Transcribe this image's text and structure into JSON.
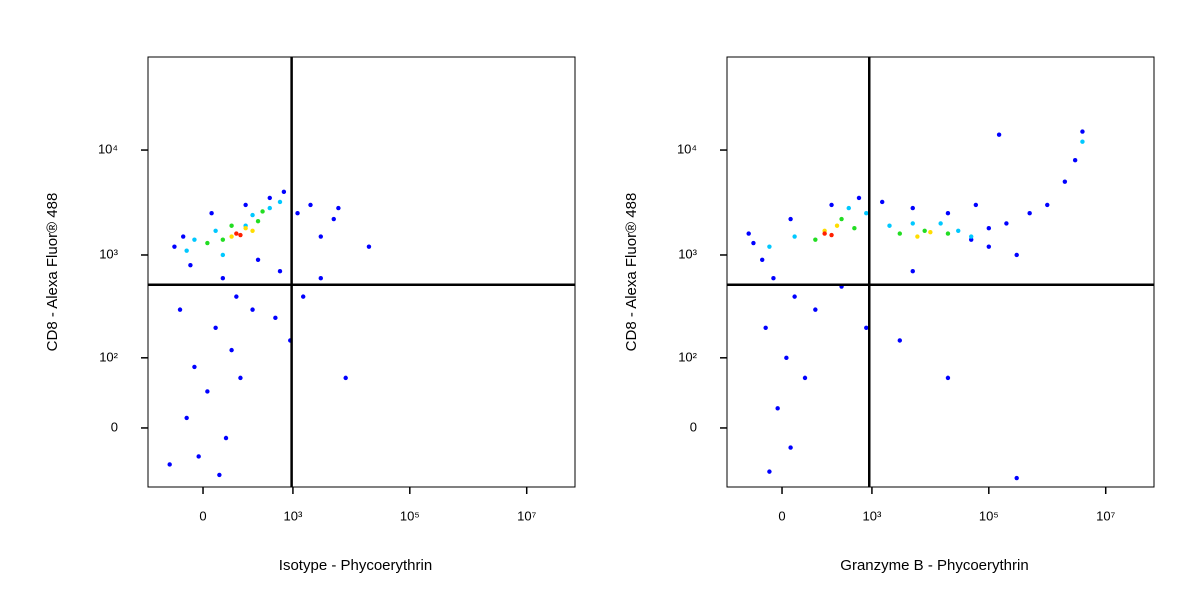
{
  "chart_data": [
    {
      "type": "scatter",
      "xlabel": "Isotype - Phycoerythrin",
      "ylabel": "CD8 - Alexa Fluor® 488",
      "xscale": "biexponential",
      "yscale": "biexponential",
      "xlim": [
        -250,
        67000000
      ],
      "ylim": [
        -76,
        77000
      ],
      "xticks": [
        0,
        {
          "value": 1000,
          "label": "10³"
        },
        {
          "value": 100000,
          "label": "10⁵"
        },
        {
          "value": 10000000,
          "label": "10⁷"
        }
      ],
      "yticks": [
        0,
        {
          "value": 100,
          "label": "10²"
        },
        {
          "value": 1000,
          "label": "10³"
        },
        {
          "value": 10000,
          "label": "10⁴"
        }
      ],
      "gates": {
        "x": 950,
        "y": 520
      },
      "series": [
        {
          "color": "#0000ff",
          "x": [
            -50,
            -80,
            20,
            150,
            400,
            700,
            1200,
            2000,
            3000,
            6000,
            -30,
            50,
            100,
            -60,
            30,
            80,
            -20,
            10,
            -40,
            60,
            -10,
            120,
            200,
            500,
            900,
            1500,
            3000,
            8000,
            -100,
            250,
            600,
            40,
            5000,
            20000
          ],
          "values": [
            1500,
            1200,
            2500,
            3000,
            3500,
            4000,
            2500,
            3000,
            1500,
            2800,
            800,
            600,
            400,
            300,
            200,
            120,
            80,
            40,
            10,
            -10,
            -30,
            60,
            300,
            250,
            150,
            400,
            600,
            60,
            -40,
            900,
            700,
            -55,
            2200,
            1200
          ]
        },
        {
          "color": "#00c8ff",
          "x": [
            -20,
            30,
            200,
            400,
            600,
            -40,
            50,
            150
          ],
          "values": [
            1400,
            1700,
            2400,
            2800,
            3200,
            1100,
            1000,
            1900
          ]
        },
        {
          "color": "#22dd22",
          "x": [
            50,
            80,
            250,
            300,
            10
          ],
          "values": [
            1400,
            1900,
            2100,
            2600,
            1300
          ]
        },
        {
          "color": "#ffdd00",
          "x": [
            80,
            150,
            200
          ],
          "values": [
            1500,
            1800,
            1700
          ]
        },
        {
          "color": "#ff2000",
          "x": [
            100,
            120
          ],
          "values": [
            1600,
            1550
          ]
        }
      ]
    },
    {
      "type": "scatter",
      "xlabel": "Granzyme B - Phycoerythrin",
      "ylabel": "CD8 - Alexa Fluor® 488",
      "xscale": "biexponential",
      "yscale": "biexponential",
      "xlim": [
        -250,
        67000000
      ],
      "ylim": [
        -76,
        77000
      ],
      "xticks": [
        0,
        {
          "value": 1000,
          "label": "10³"
        },
        {
          "value": 100000,
          "label": "10⁵"
        },
        {
          "value": 10000000,
          "label": "10⁷"
        }
      ],
      "yticks": [
        0,
        {
          "value": 100,
          "label": "10²"
        },
        {
          "value": 1000,
          "label": "10³"
        },
        {
          "value": 10000,
          "label": "10⁴"
        }
      ],
      "gates": {
        "x": 900,
        "y": 520
      },
      "series": [
        {
          "color": "#0000ff",
          "x": [
            -80,
            -50,
            20,
            200,
            600,
            1500,
            5000,
            20000,
            50000,
            100000,
            200000,
            500000,
            1000000,
            2000000,
            3000000,
            4000000,
            100000,
            300000,
            -20,
            30,
            -40,
            10,
            60,
            -10,
            20,
            -30,
            100,
            300,
            800,
            3000,
            20000,
            60000,
            150000,
            -100,
            5000,
            300000
          ],
          "values": [
            1300,
            900,
            2200,
            3000,
            3500,
            3200,
            2800,
            2500,
            1400,
            1800,
            2000,
            2500,
            3000,
            5000,
            8000,
            15000,
            1200,
            1000,
            600,
            400,
            200,
            100,
            60,
            20,
            -20,
            -50,
            300,
            500,
            200,
            150,
            60,
            3000,
            14000,
            1600,
            700,
            -60
          ]
        },
        {
          "color": "#00c8ff",
          "x": [
            30,
            400,
            800,
            2000,
            5000,
            15000,
            30000,
            -30,
            4000000,
            50000
          ],
          "values": [
            1500,
            2800,
            2500,
            1900,
            2000,
            2000,
            1700,
            1200,
            12000,
            1500
          ]
        },
        {
          "color": "#22dd22",
          "x": [
            100,
            300,
            500,
            3000,
            8000,
            20000
          ],
          "values": [
            1400,
            2200,
            1800,
            1600,
            1700,
            1600
          ]
        },
        {
          "color": "#ffdd00",
          "x": [
            150,
            250,
            6000,
            10000
          ],
          "values": [
            1700,
            1900,
            1500,
            1650
          ]
        },
        {
          "color": "#ff2000",
          "x": [
            150,
            200
          ],
          "values": [
            1600,
            1550
          ]
        }
      ]
    }
  ]
}
